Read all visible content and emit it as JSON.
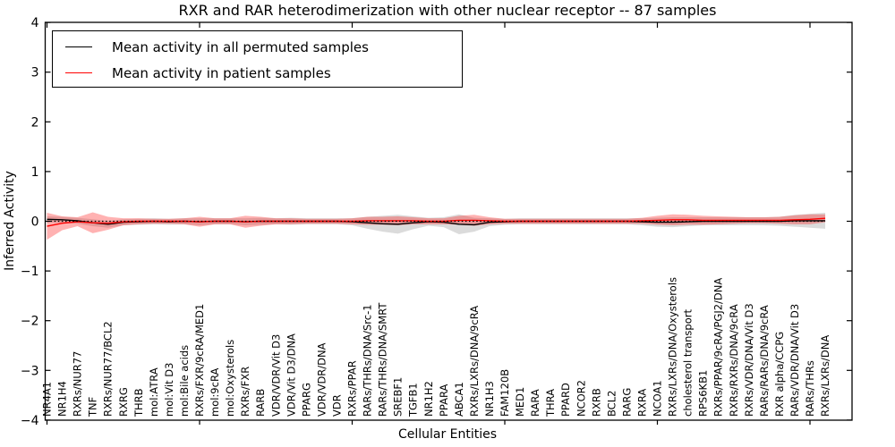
{
  "chart_data": {
    "type": "line",
    "title": "RXR and RAR heterodimerization with other nuclear receptor -- 87 samples",
    "xlabel": "Cellular Entities",
    "ylabel": "Inferred Activity",
    "ylim": [
      -4,
      4
    ],
    "ytick_values": [
      4,
      3,
      2,
      1,
      0,
      -1,
      -2,
      -3,
      -4
    ],
    "ytick_labels": [
      "4",
      "3",
      "2",
      "1",
      "0",
      "−1",
      "−2",
      "−3",
      "−4"
    ],
    "xtick_positions": [
      0,
      10,
      20,
      30,
      40,
      50
    ],
    "grid": false,
    "legend_position": "upper left",
    "zero_reference_line": 0,
    "categories": [
      "NR4A1",
      "NR1H4",
      "RXRs/NUR77",
      "TNF",
      "RXRs/NUR77/BCL2",
      "RXRG",
      "THRB",
      "mol:ATRA",
      "mol:Vit D3",
      "mol:Bile acids",
      "RXRs/FXR/9cRA/MED1",
      "mol:9cRA",
      "mol:Oxysterols",
      "RXRs/FXR",
      "RARB",
      "VDR/VDR/Vit D3",
      "VDR/Vit D3/DNA",
      "PPARG",
      "VDR/VDR/DNA",
      "VDR",
      "RXRs/PPAR",
      "RARs/THRs/DNA/Src-1",
      "RARs/THRs/DNA/SMRT",
      "SREBF1",
      "TGFB1",
      "NR1H2",
      "PPARA",
      "ABCA1",
      "RXRs/LXRs/DNA/9cRA",
      "NR1H3",
      "FAM120B",
      "MED1",
      "RARA",
      "THRA",
      "PPARD",
      "NCOR2",
      "RXRB",
      "BCL2",
      "RARG",
      "RXRA",
      "NCOA1",
      "RXRs/LXRs/DNA/Oxysterols",
      "cholesterol transport",
      "RPS6KB1",
      "RXRs/PPAR/9cRA/PGJ2/DNA",
      "RXRs/RXRs/DNA/9cRA",
      "RXRs/VDR/DNA/Vit D3",
      "RARs/RARs/DNA/9cRA",
      "RXR alpha/CCPG",
      "RARs/VDR/DNA/Vit D3",
      "RARs/THRs",
      "RXRs/LXRs/DNA"
    ],
    "series": [
      {
        "name": "Mean activity in all permuted samples",
        "color": "#000000",
        "band_color": "#b0b0b0",
        "band_opacity": 0.45,
        "values": [
          0.04,
          0.03,
          0.01,
          -0.03,
          -0.06,
          -0.02,
          -0.01,
          0,
          -0.01,
          0,
          -0.01,
          0,
          0,
          -0.01,
          0,
          0,
          0,
          0,
          0,
          0,
          -0.01,
          -0.03,
          -0.05,
          -0.06,
          -0.03,
          -0.01,
          -0.02,
          -0.06,
          -0.07,
          -0.02,
          -0.01,
          0,
          0,
          0,
          0,
          0,
          0,
          0,
          0,
          -0.01,
          -0.02,
          -0.02,
          -0.01,
          0,
          0,
          0,
          0,
          0,
          0,
          0.01,
          0.01,
          0.01
        ],
        "band": [
          0.06,
          0.06,
          0.06,
          0.07,
          0.07,
          0.06,
          0.06,
          0.06,
          0.06,
          0.06,
          0.07,
          0.06,
          0.06,
          0.07,
          0.07,
          0.06,
          0.07,
          0.06,
          0.06,
          0.06,
          0.07,
          0.12,
          0.16,
          0.19,
          0.13,
          0.08,
          0.1,
          0.2,
          0.14,
          0.08,
          0.06,
          0.06,
          0.06,
          0.06,
          0.06,
          0.06,
          0.06,
          0.06,
          0.06,
          0.07,
          0.09,
          0.1,
          0.09,
          0.08,
          0.08,
          0.08,
          0.08,
          0.08,
          0.09,
          0.12,
          0.14,
          0.16
        ]
      },
      {
        "name": "Mean activity in patient samples",
        "color": "#ff0000",
        "band_color": "#ff0000",
        "band_opacity": 0.3,
        "values": [
          -0.1,
          -0.04,
          -0.01,
          -0.03,
          -0.04,
          -0.01,
          0,
          0,
          0,
          0,
          -0.01,
          0,
          0,
          -0.01,
          0,
          0,
          0,
          0,
          0,
          0,
          0,
          0.01,
          0.01,
          0.01,
          0.01,
          0,
          0,
          0.02,
          0.02,
          0.01,
          0,
          0,
          0,
          0,
          0,
          0,
          0,
          0,
          0,
          0.01,
          0.02,
          0.03,
          0.03,
          0.02,
          0.02,
          0.02,
          0.02,
          0.02,
          0.02,
          0.03,
          0.04,
          0.06
        ],
        "band": [
          0.27,
          0.14,
          0.09,
          0.21,
          0.13,
          0.07,
          0.06,
          0.05,
          0.05,
          0.06,
          0.1,
          0.06,
          0.06,
          0.12,
          0.09,
          0.06,
          0.06,
          0.05,
          0.05,
          0.05,
          0.06,
          0.08,
          0.08,
          0.09,
          0.07,
          0.06,
          0.06,
          0.09,
          0.11,
          0.07,
          0.05,
          0.05,
          0.05,
          0.05,
          0.05,
          0.05,
          0.05,
          0.05,
          0.05,
          0.06,
          0.09,
          0.11,
          0.1,
          0.09,
          0.08,
          0.07,
          0.06,
          0.06,
          0.07,
          0.09,
          0.1,
          0.08
        ]
      }
    ]
  }
}
